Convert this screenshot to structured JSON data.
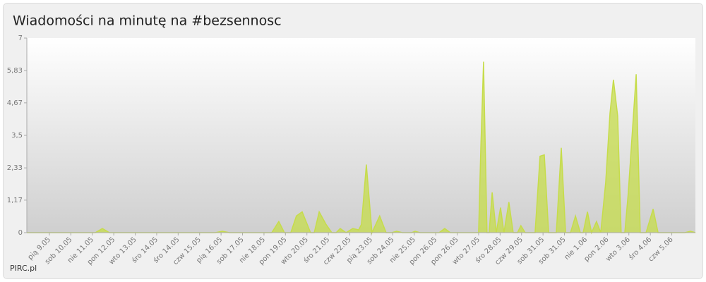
{
  "chart_data": {
    "type": "area",
    "title": "Wiadomości na minutę na #bezsennosc",
    "footer": "PIRC.pl",
    "color": "#c6dc4a",
    "x": [
      -1.05,
      2.14,
      2.47,
      2.8,
      7.73,
      8.06,
      8.39,
      10.36,
      10.69,
      10.95,
      11.25,
      11.51,
      11.78,
      12.17,
      12.34,
      12.57,
      12.89,
      13.16,
      13.36,
      13.55,
      13.82,
      14.14,
      14.41,
      14.54,
      14.77,
      15.03,
      15.39,
      15.69,
      15.95,
      16.18,
      16.45,
      16.88,
      17.04,
      17.27,
      18.16,
      18.42,
      18.68,
      20.0,
      20.1,
      20.23,
      20.39,
      20.49,
      20.63,
      20.82,
      21.02,
      21.18,
      21.41,
      21.61,
      21.81,
      21.97,
      22.17,
      22.63,
      22.86,
      23.06,
      23.26,
      23.62,
      23.85,
      24.05,
      24.28,
      24.51,
      24.74,
      24.87,
      25.07,
      25.26,
      25.49,
      25.69,
      25.92,
      26.12,
      26.28,
      26.48,
      26.64,
      26.81,
      26.97,
      27.34,
      27.53,
      27.8,
      28.13,
      28.36,
      29.61,
      29.87,
      30.1
    ],
    "values": [
      0,
      0,
      0.15,
      0,
      0,
      0.05,
      0,
      0,
      0.4,
      0,
      0,
      0.6,
      0.75,
      0,
      0,
      0.75,
      0.3,
      0,
      0,
      0.15,
      0,
      0.15,
      0.1,
      0.3,
      2.45,
      0,
      0.6,
      0,
      0,
      0.05,
      0,
      0,
      0.05,
      0,
      0,
      0.15,
      0,
      0,
      3.0,
      6.15,
      0,
      0,
      1.45,
      0,
      0.9,
      0,
      1.1,
      0,
      0,
      0.25,
      0,
      0,
      2.75,
      2.8,
      0,
      0,
      3.05,
      0,
      0,
      0.6,
      0,
      0,
      0.75,
      0,
      0.4,
      0,
      1.8,
      4.3,
      5.5,
      4.2,
      0,
      0,
      1.4,
      5.7,
      0,
      0,
      0.85,
      0,
      0,
      0.05,
      0
    ],
    "xlim": [
      -1.05,
      30.1
    ],
    "xticks": [
      {
        "value": 0,
        "label": "pią 9.05"
      },
      {
        "value": 1,
        "label": "sob 10.05"
      },
      {
        "value": 2,
        "label": "nie 11.05"
      },
      {
        "value": 3,
        "label": "pon 12.05"
      },
      {
        "value": 4,
        "label": "wto 13.05"
      },
      {
        "value": 5,
        "label": "śro 14.05"
      },
      {
        "value": 6,
        "label": "śro 14.05"
      },
      {
        "value": 7,
        "label": "czw 15.05"
      },
      {
        "value": 8,
        "label": "pią 16.05"
      },
      {
        "value": 9,
        "label": "sob 17.05"
      },
      {
        "value": 10,
        "label": "nie 18.05"
      },
      {
        "value": 11,
        "label": "pon 19.05"
      },
      {
        "value": 12,
        "label": "wto 20.05"
      },
      {
        "value": 13,
        "label": "śro 21.05"
      },
      {
        "value": 14,
        "label": "czw 22.05"
      },
      {
        "value": 15,
        "label": "pią 23.05"
      },
      {
        "value": 16,
        "label": "sob 24.05"
      },
      {
        "value": 17,
        "label": "nie 25.05"
      },
      {
        "value": 18,
        "label": "pon 26.05"
      },
      {
        "value": 19,
        "label": "pon 26.05"
      },
      {
        "value": 20,
        "label": "wto 27.05"
      },
      {
        "value": 21,
        "label": "śro 28.05"
      },
      {
        "value": 22,
        "label": "czw 29.05"
      },
      {
        "value": 23,
        "label": "sob 31.05"
      },
      {
        "value": 24,
        "label": "sob 31.05"
      },
      {
        "value": 25,
        "label": "nie 1.06"
      },
      {
        "value": 26,
        "label": "pon 2.06"
      },
      {
        "value": 27,
        "label": "wto 3.06"
      },
      {
        "value": 28,
        "label": "śro 4.06"
      },
      {
        "value": 29,
        "label": "czw 5.06"
      }
    ],
    "ylim": [
      0,
      7
    ],
    "yticks": [
      0,
      {
        "value": 1.17,
        "label": "1,17"
      },
      {
        "value": 2.33,
        "label": "2,33"
      },
      {
        "value": 3.5,
        "label": "3,5"
      },
      {
        "value": 4.67,
        "label": "4,67"
      },
      {
        "value": 5.83,
        "label": "5,83"
      },
      7
    ]
  }
}
